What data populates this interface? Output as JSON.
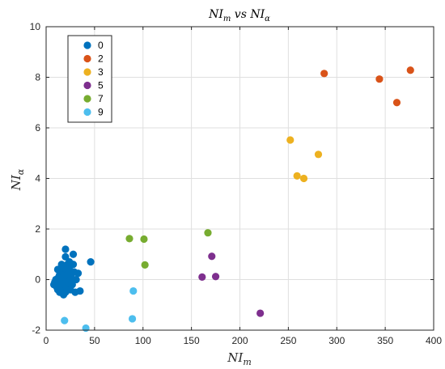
{
  "chart_data": {
    "type": "scatter",
    "title": "NI",
    "title_sub1": "m",
    "title_mid": " vs NI",
    "title_sub2": "α",
    "xlabel": "NI",
    "xlabel_sub": "m",
    "ylabel": "NI",
    "ylabel_sub": "α",
    "xlim": [
      0,
      400
    ],
    "ylim": [
      -2,
      10
    ],
    "xticks": [
      0,
      50,
      100,
      150,
      200,
      250,
      300,
      350,
      400
    ],
    "yticks": [
      -2,
      0,
      2,
      4,
      6,
      8,
      10
    ],
    "grid": true,
    "legend_position": "top-left",
    "series": [
      {
        "name": "0",
        "color": "#0072BD",
        "points": [
          [
            8,
            -0.2
          ],
          [
            9,
            -0.1
          ],
          [
            10,
            0.0
          ],
          [
            11,
            -0.3
          ],
          [
            12,
            0.4
          ],
          [
            12,
            -0.4
          ],
          [
            13,
            0.1
          ],
          [
            13,
            -0.2
          ],
          [
            14,
            0.2
          ],
          [
            14,
            -0.5
          ],
          [
            15,
            0.0
          ],
          [
            15,
            -0.3
          ],
          [
            16,
            0.6
          ],
          [
            16,
            -0.1
          ],
          [
            17,
            0.3
          ],
          [
            17,
            -0.4
          ],
          [
            18,
            0.5
          ],
          [
            18,
            0.1
          ],
          [
            18,
            -0.6
          ],
          [
            19,
            0.2
          ],
          [
            19,
            -0.2
          ],
          [
            20,
            1.2
          ],
          [
            20,
            0.9
          ],
          [
            20,
            -0.5
          ],
          [
            21,
            0.4
          ],
          [
            21,
            0.0
          ],
          [
            22,
            0.6
          ],
          [
            22,
            -0.3
          ],
          [
            23,
            0.2
          ],
          [
            23,
            -0.1
          ],
          [
            24,
            0.7
          ],
          [
            24,
            0.4
          ],
          [
            25,
            0.0
          ],
          [
            25,
            -0.4
          ],
          [
            26,
            0.2
          ],
          [
            27,
            -0.2
          ],
          [
            28,
            1.0
          ],
          [
            28,
            0.6
          ],
          [
            29,
            0.3
          ],
          [
            30,
            -0.5
          ],
          [
            31,
            0.0
          ],
          [
            33,
            0.25
          ],
          [
            35,
            -0.45
          ],
          [
            46,
            0.7
          ]
        ]
      },
      {
        "name": "2",
        "color": "#D95319",
        "points": [
          [
            287,
            8.15
          ],
          [
            344,
            7.93
          ],
          [
            362,
            7.0
          ],
          [
            376,
            8.28
          ]
        ]
      },
      {
        "name": "3",
        "color": "#EDB120",
        "points": [
          [
            252,
            5.52
          ],
          [
            259,
            4.1
          ],
          [
            266,
            4.0
          ],
          [
            281,
            4.95
          ]
        ]
      },
      {
        "name": "5",
        "color": "#7E2F8E",
        "points": [
          [
            161,
            0.1
          ],
          [
            171,
            0.92
          ],
          [
            175,
            0.12
          ],
          [
            221,
            -1.33
          ]
        ]
      },
      {
        "name": "7",
        "color": "#77AC30",
        "points": [
          [
            86,
            1.62
          ],
          [
            101,
            1.6
          ],
          [
            102,
            0.58
          ],
          [
            167,
            1.85
          ]
        ]
      },
      {
        "name": "9",
        "color": "#4DBEEE",
        "points": [
          [
            19,
            -1.62
          ],
          [
            41,
            -1.92
          ],
          [
            89,
            -1.55
          ],
          [
            90,
            -0.45
          ]
        ]
      }
    ]
  }
}
